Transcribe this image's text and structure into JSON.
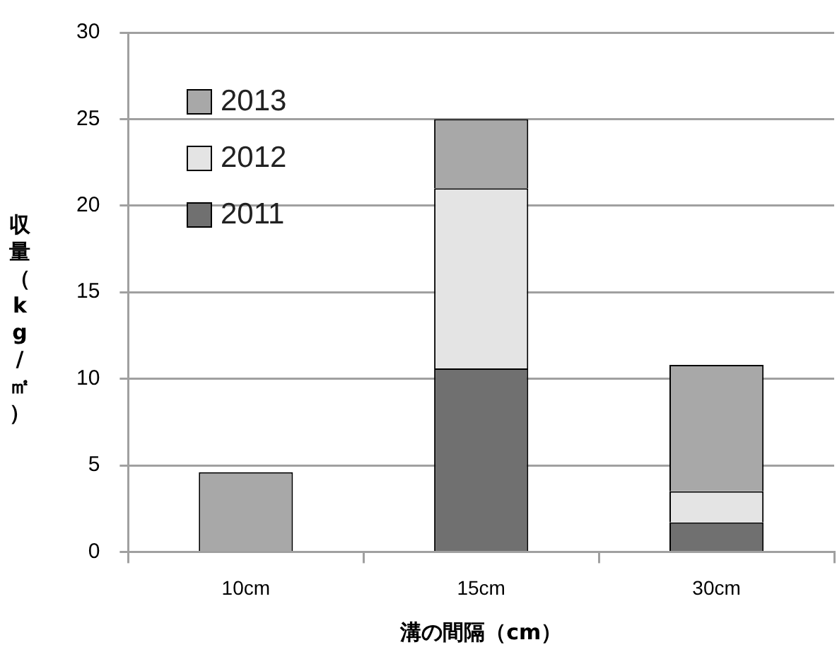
{
  "chart_data": {
    "type": "bar",
    "stacked": true,
    "xlabel": "溝の間隔（cm）",
    "ylabel": "収量（kg/㎡）",
    "categories": [
      "10cm",
      "15cm",
      "30cm"
    ],
    "series": [
      {
        "name": "2011",
        "color": "#707070",
        "values": [
          0,
          10.6,
          1.7
        ]
      },
      {
        "name": "2012",
        "color": "#e4e4e4",
        "values": [
          0,
          10.4,
          1.8
        ]
      },
      {
        "name": "2013",
        "color": "#a8a8a8",
        "values": [
          4.6,
          4.0,
          7.3
        ]
      }
    ],
    "ylim": [
      0,
      30
    ],
    "yticks": [
      0,
      5,
      10,
      15,
      20,
      25,
      30
    ],
    "grid": "y",
    "legend": "top left"
  }
}
